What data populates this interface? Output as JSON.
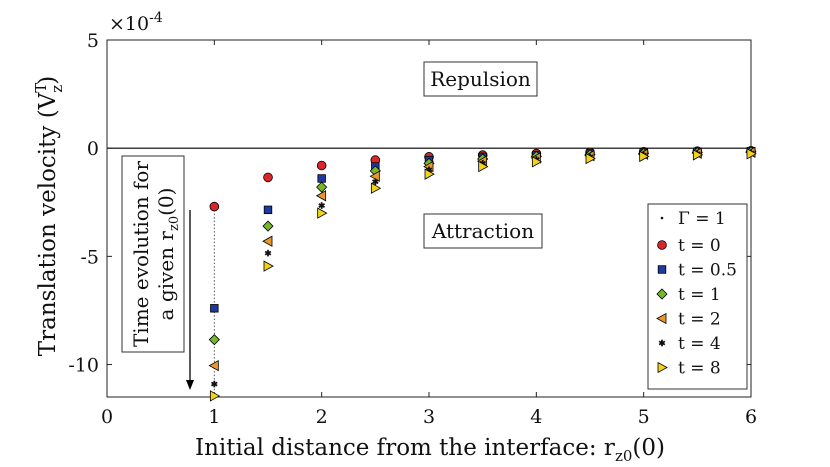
{
  "chart_data": {
    "type": "scatter",
    "xlabel": "Initial distance from the interface: r",
    "xlabel_sub": "z0",
    "xlabel_tail": "(0)",
    "ylabel": "Translation velocity (V",
    "ylabel_sup": "T",
    "ylabel_sub": "z",
    "ylabel_tail": ")",
    "y_multiplier": "×10",
    "y_multiplier_exp": "-4",
    "xlim": [
      0,
      6
    ],
    "ylim": [
      -11.5,
      5
    ],
    "x_ticks": [
      0,
      1,
      2,
      3,
      4,
      5,
      6
    ],
    "x_tick_labels": [
      "0",
      "1",
      "2",
      "3",
      "4",
      "5",
      "6"
    ],
    "y_ticks": [
      5,
      0,
      -5,
      -10
    ],
    "y_tick_labels": [
      "5",
      "0",
      "-5",
      "-10"
    ],
    "annotations": {
      "repulsion": "Repulsion",
      "attraction": "Attraction",
      "time_line1": "Time evolution for",
      "time_line2": "a given r",
      "time_line2_sub": "z0",
      "time_line2_tail": "(0)"
    },
    "legend_title": "Γ = 1",
    "x": [
      1,
      1.5,
      2,
      2.5,
      3,
      3.5,
      4,
      4.5,
      5,
      5.5,
      6
    ],
    "series": [
      {
        "name": "t = 0",
        "marker": "circle",
        "color": "#d9262a",
        "values": [
          -2.7,
          -1.35,
          -0.8,
          -0.55,
          -0.4,
          -0.32,
          -0.25,
          -0.2,
          -0.17,
          -0.14,
          -0.12
        ]
      },
      {
        "name": "t = 0.5",
        "marker": "square",
        "color": "#1f3a9e",
        "values": [
          -7.4,
          -2.85,
          -1.4,
          -0.85,
          -0.55,
          -0.4,
          -0.32,
          -0.25,
          -0.2,
          -0.17,
          -0.14
        ]
      },
      {
        "name": "t = 1",
        "marker": "diamond",
        "color": "#76b82a",
        "values": [
          -8.85,
          -3.6,
          -1.8,
          -1.05,
          -0.7,
          -0.5,
          -0.38,
          -0.3,
          -0.24,
          -0.2,
          -0.17
        ]
      },
      {
        "name": "t = 2",
        "marker": "triangle-left",
        "color": "#e8962e",
        "values": [
          -10.05,
          -4.3,
          -2.2,
          -1.3,
          -0.85,
          -0.6,
          -0.45,
          -0.35,
          -0.28,
          -0.23,
          -0.19
        ]
      },
      {
        "name": "t = 4",
        "marker": "star",
        "color": "#111111",
        "values": [
          -10.9,
          -4.85,
          -2.65,
          -1.55,
          -1.0,
          -0.7,
          -0.52,
          -0.4,
          -0.32,
          -0.26,
          -0.22
        ]
      },
      {
        "name": "t = 8",
        "marker": "triangle-right",
        "color": "#f2d21b",
        "values": [
          -11.45,
          -5.45,
          -3.0,
          -1.85,
          -1.2,
          -0.85,
          -0.63,
          -0.48,
          -0.38,
          -0.31,
          -0.26
        ]
      }
    ],
    "legend_position": "bottom-right",
    "grid": false
  }
}
